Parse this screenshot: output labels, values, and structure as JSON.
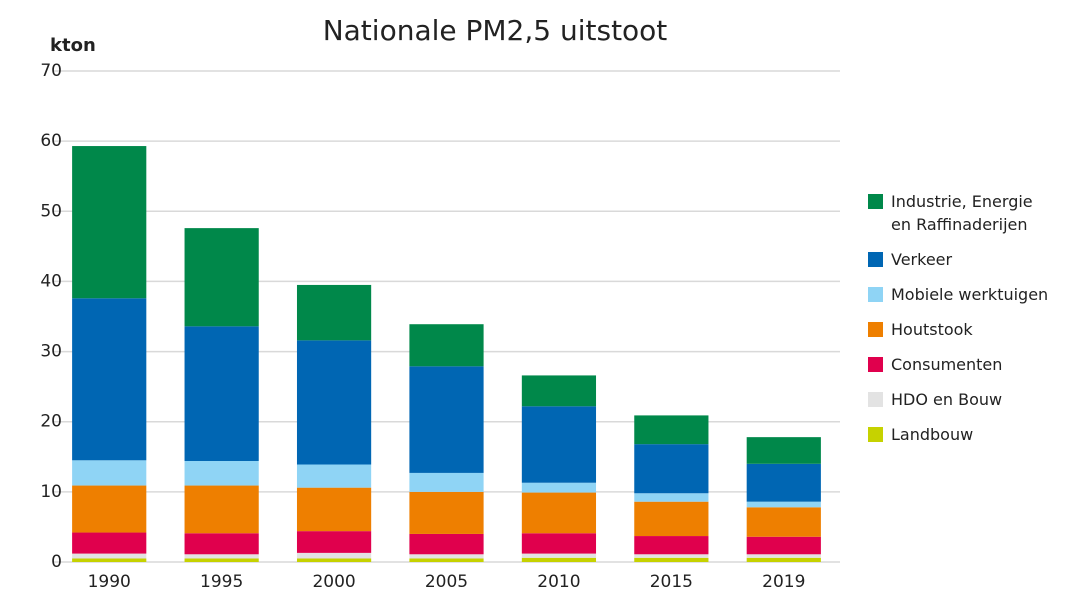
{
  "chart_data": {
    "type": "stacked_bar",
    "title": "Nationale PM2,5 uitstoot",
    "y_label": "kton",
    "categories": [
      "1990",
      "1995",
      "2000",
      "2005",
      "2010",
      "2015",
      "2019"
    ],
    "series": [
      {
        "name": "Landbouw",
        "color": "#c6d200",
        "values": [
          0.5,
          0.5,
          0.5,
          0.5,
          0.6,
          0.6,
          0.6
        ]
      },
      {
        "name": "HDO en Bouw",
        "color": "#e3e3e3",
        "values": [
          0.7,
          0.6,
          0.8,
          0.6,
          0.6,
          0.5,
          0.5
        ]
      },
      {
        "name": "Consumenten",
        "color": "#e0004d",
        "values": [
          3.0,
          3.0,
          3.1,
          2.9,
          2.9,
          2.6,
          2.5
        ]
      },
      {
        "name": "Houtstook",
        "color": "#ee7f00",
        "values": [
          6.7,
          6.8,
          6.2,
          6.0,
          5.8,
          4.9,
          4.2
        ]
      },
      {
        "name": "Mobiele werktuigen",
        "color": "#8fd4f5",
        "values": [
          3.6,
          3.5,
          3.3,
          2.7,
          1.4,
          1.2,
          0.8
        ]
      },
      {
        "name": "Verkeer",
        "color": "#0066b3",
        "values": [
          23.1,
          19.2,
          17.7,
          15.2,
          10.9,
          7.0,
          5.4
        ]
      },
      {
        "name": "Industrie, Energie en Raffinaderijen",
        "color": "#00884a",
        "values": [
          21.7,
          14.0,
          7.9,
          6.0,
          4.4,
          4.1,
          3.8
        ]
      }
    ],
    "ylim": [
      0,
      70
    ],
    "yticks": [
      0,
      10,
      20,
      30,
      40,
      50,
      60,
      70
    ],
    "grid": true,
    "legend": "right"
  }
}
